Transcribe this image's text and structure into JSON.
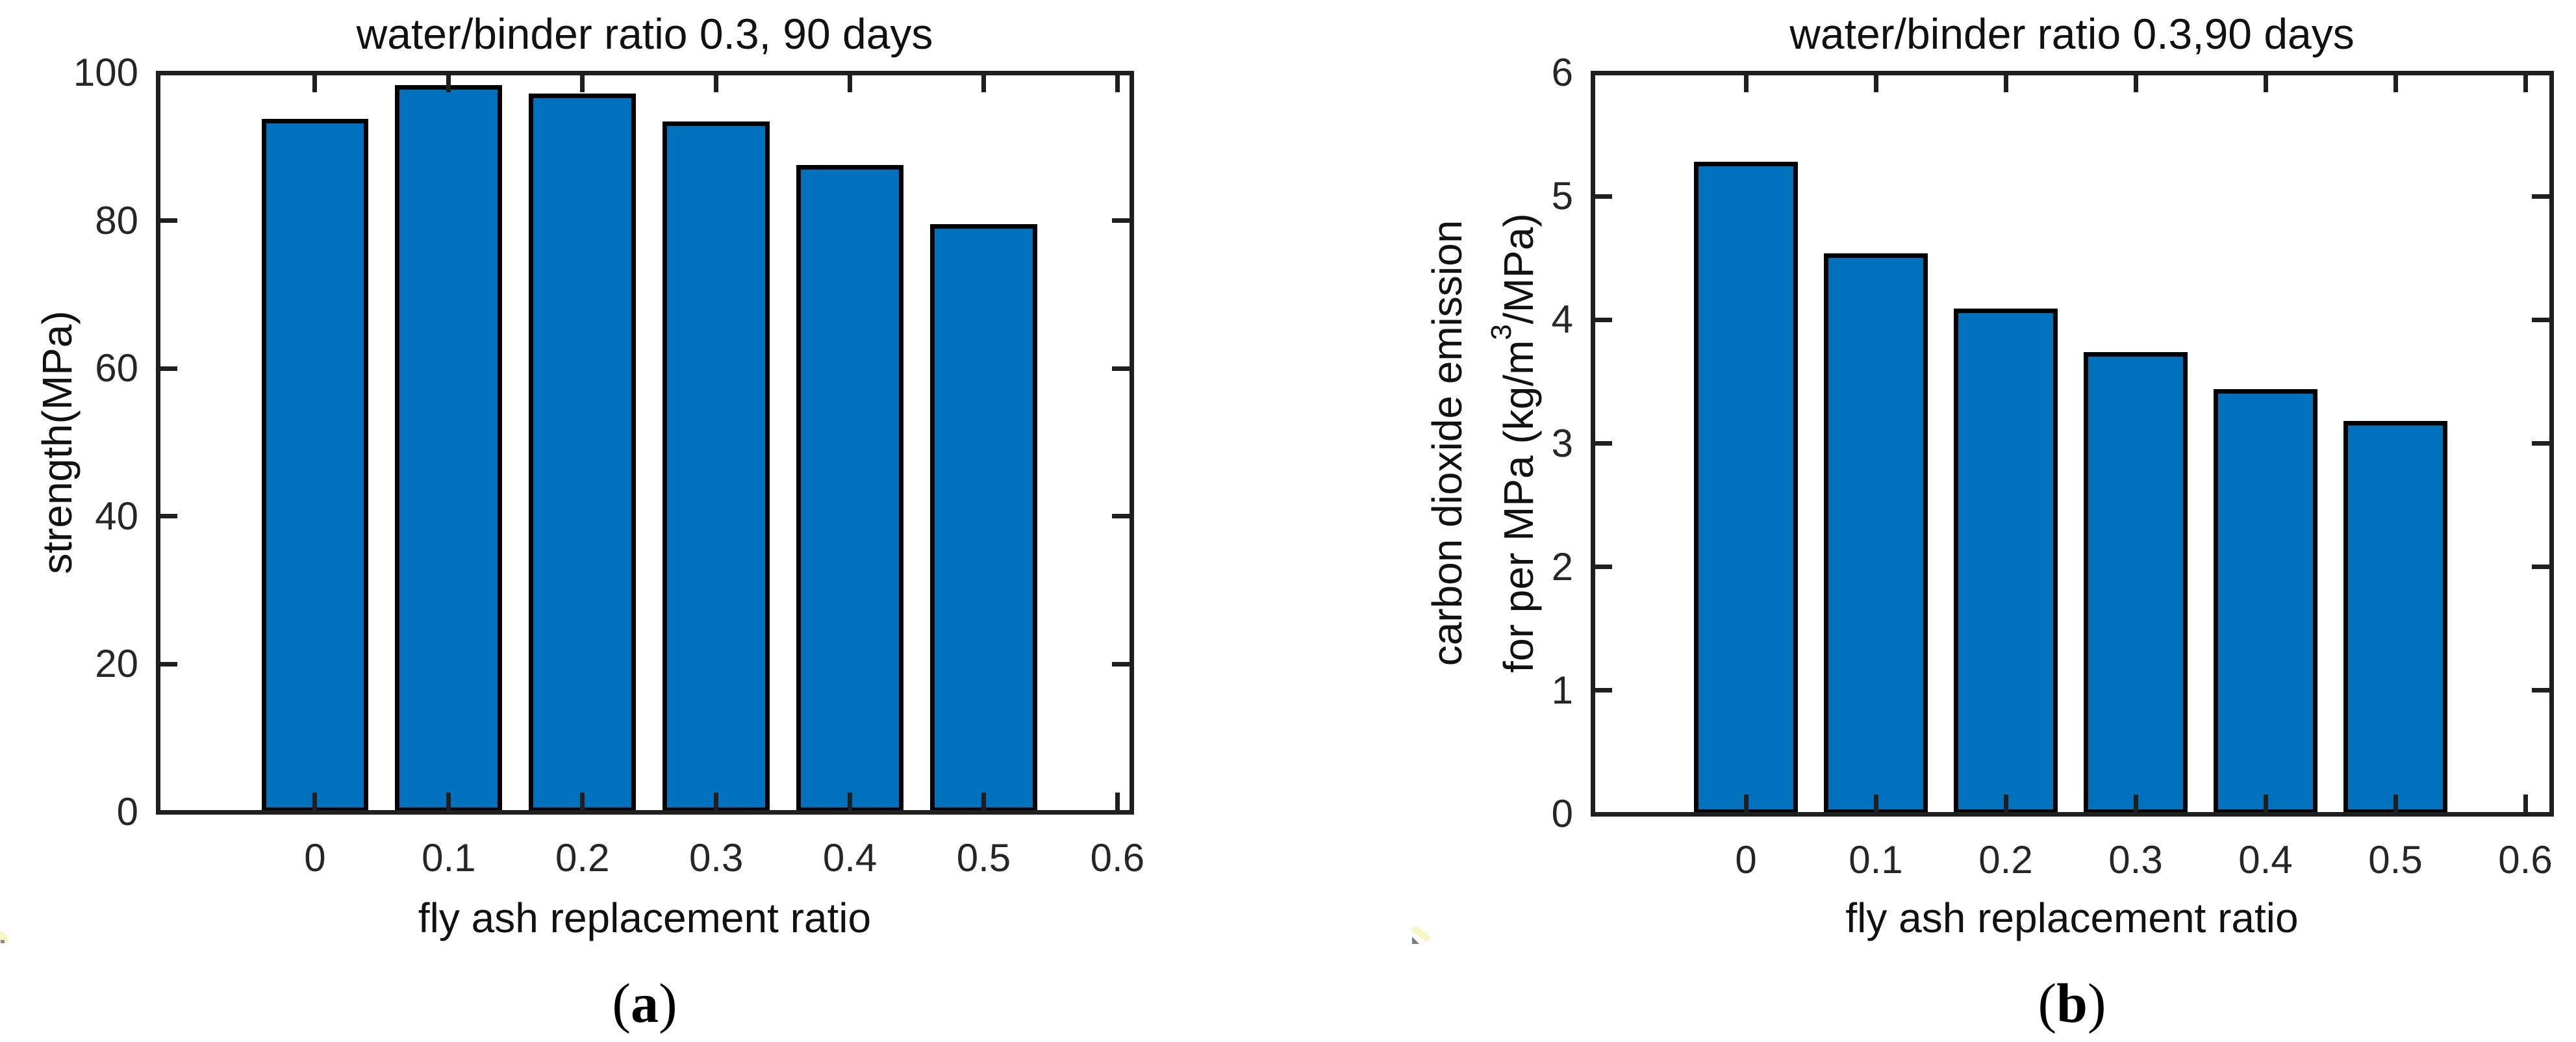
{
  "figure": {
    "background": "#ffffff",
    "panel_captions": [
      "(a)",
      "(b)"
    ]
  },
  "chart_data": [
    {
      "type": "bar",
      "title": "water/binder ratio 0.3, 90 days",
      "xlabel": "fly ash replacement ratio",
      "ylabel": "strength(MPa)",
      "categories": [
        0,
        0.1,
        0.2,
        0.3,
        0.4,
        0.5
      ],
      "values": [
        93.8,
        98.3,
        97.2,
        93.4,
        87.5,
        79.5
      ],
      "bar_width": 0.08,
      "bar_color": "#0072BD",
      "bar_edge_color": "#000000",
      "xtick_values": [
        0,
        0.1,
        0.2,
        0.3,
        0.4,
        0.5,
        0.6
      ],
      "xtick_labels": [
        "0",
        "0.1",
        "0.2",
        "0.3",
        "0.4",
        "0.5",
        "0.6"
      ],
      "ytick_values": [
        0,
        20,
        40,
        60,
        80,
        100
      ],
      "ytick_labels": [
        "0",
        "20",
        "40",
        "60",
        "80",
        "100"
      ],
      "ylim": [
        0,
        100
      ],
      "xlim": [
        -0.12,
        0.61
      ],
      "grid": false,
      "legend_position": "none",
      "caption": {
        "open": "(",
        "letter": "a",
        "close": ")"
      }
    },
    {
      "type": "bar",
      "title": "water/binder ratio 0.3,90 days",
      "xlabel": "fly ash replacement ratio",
      "ylabel_line1": "carbon dioxide emission",
      "ylabel_line2": {
        "pre": "for per MPa (kg/m",
        "sup": "3",
        "post": "/MPa)"
      },
      "categories": [
        0,
        0.1,
        0.2,
        0.3,
        0.4,
        0.5
      ],
      "values": [
        5.28,
        4.54,
        4.09,
        3.74,
        3.44,
        3.18
      ],
      "bar_width": 0.08,
      "bar_color": "#0072BD",
      "bar_edge_color": "#000000",
      "xtick_values": [
        0,
        0.1,
        0.2,
        0.3,
        0.4,
        0.5,
        0.6
      ],
      "xtick_labels": [
        "0",
        "0.1",
        "0.2",
        "0.3",
        "0.4",
        "0.5",
        "0.6"
      ],
      "ytick_values": [
        0,
        1,
        2,
        3,
        4,
        5,
        6
      ],
      "ytick_labels": [
        "0",
        "1",
        "2",
        "3",
        "4",
        "5",
        "6"
      ],
      "ylim": [
        0,
        6
      ],
      "xlim": [
        -0.12,
        0.62
      ],
      "grid": false,
      "legend_position": "none",
      "caption": {
        "open": "(",
        "letter": "b",
        "close": ")"
      }
    }
  ]
}
